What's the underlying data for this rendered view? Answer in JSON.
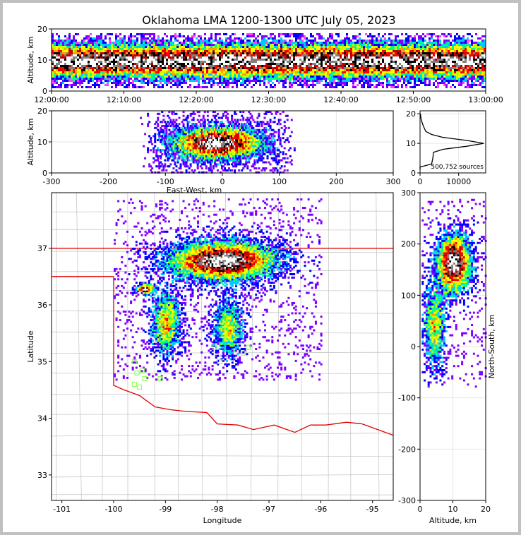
{
  "title": "Oklahoma LMA 1200-1300 UTC July 05, 2023",
  "colors": {
    "border_red": "#e00000",
    "county_gray": "#c8c8c8",
    "station_green": "#80ff40",
    "density_scale": [
      "#ff40ff",
      "#8000ff",
      "#0000ff",
      "#00c8ff",
      "#00ff80",
      "#c0ff00",
      "#ffff00",
      "#ffa000",
      "#ff0000",
      "#c00000",
      "#000000",
      "#808080",
      "#ffffff"
    ]
  },
  "chart_data": [
    {
      "panel": "time-height",
      "type": "heatmap",
      "xlabel": "",
      "ylabel": "Altitude, km",
      "xticks": [
        "12:00:00",
        "12:10:00",
        "12:20:00",
        "12:30:00",
        "12:40:00",
        "12:50:00",
        "13:00:00"
      ],
      "yticks": [
        0,
        10,
        20
      ],
      "ylim": [
        0,
        20
      ],
      "description_values": {
        "core_altitude_km": 10,
        "top_km": 20
      }
    },
    {
      "panel": "east-west-altitude",
      "type": "heatmap",
      "xlabel": "East-West, km",
      "ylabel": "Altitude, km",
      "xticks": [
        -300,
        -200,
        -100,
        0,
        100,
        200,
        300
      ],
      "yticks": [
        0,
        10,
        20
      ],
      "xlim": [
        -300,
        300
      ],
      "ylim": [
        0,
        20
      ]
    },
    {
      "panel": "altitude-histogram",
      "type": "line",
      "xticks": [
        0,
        10000
      ],
      "yticks": [
        0,
        10,
        20
      ],
      "xlim": [
        0,
        17000
      ],
      "ylim": [
        0,
        21
      ],
      "annotation": "500,752 sources",
      "profile": [
        [
          0.5,
          1
        ],
        [
          1.5,
          2
        ],
        [
          3000,
          3
        ],
        [
          3300,
          5
        ],
        [
          3500,
          7
        ],
        [
          6000,
          8
        ],
        [
          12000,
          9
        ],
        [
          16500,
          10
        ],
        [
          12000,
          11
        ],
        [
          6000,
          12
        ],
        [
          3000,
          13
        ],
        [
          1500,
          14
        ],
        [
          800,
          16
        ],
        [
          300,
          18
        ],
        [
          100,
          20
        ]
      ]
    },
    {
      "panel": "plan-view",
      "type": "heatmap",
      "xlabel": "Longitude",
      "ylabel": "Latitude",
      "xticks": [
        -101,
        -100,
        -99,
        -98,
        -97,
        -96,
        -95
      ],
      "yticks": [
        33,
        34,
        35,
        36,
        37
      ],
      "xlim": [
        -101.2,
        -94.6
      ],
      "ylim": [
        32.55,
        37.98
      ],
      "stations": [
        [
          -99.6,
          35.0
        ],
        [
          -99.55,
          34.8
        ],
        [
          -99.45,
          34.85
        ],
        [
          -99.4,
          34.7
        ],
        [
          -99.6,
          34.6
        ],
        [
          -99.5,
          34.55
        ],
        [
          -99.1,
          34.7
        ],
        [
          -98.05,
          35.25
        ],
        [
          -97.95,
          35.0
        ],
        [
          -97.4,
          35.25
        ],
        [
          -97.5,
          35.15
        ]
      ],
      "oklahoma_kansas_border_lat": 37.0,
      "panhandle_south_lat": 36.5,
      "panhandle_east_lon": -100.0
    },
    {
      "panel": "north-south-altitude",
      "type": "heatmap",
      "xlabel": "Altitude, km",
      "ylabel": "North-South, km",
      "xticks": [
        0,
        10,
        20
      ],
      "yticks": [
        -300,
        -200,
        -100,
        0,
        100,
        200,
        300
      ],
      "xlim": [
        0,
        20
      ],
      "ylim": [
        -300,
        300
      ]
    }
  ]
}
